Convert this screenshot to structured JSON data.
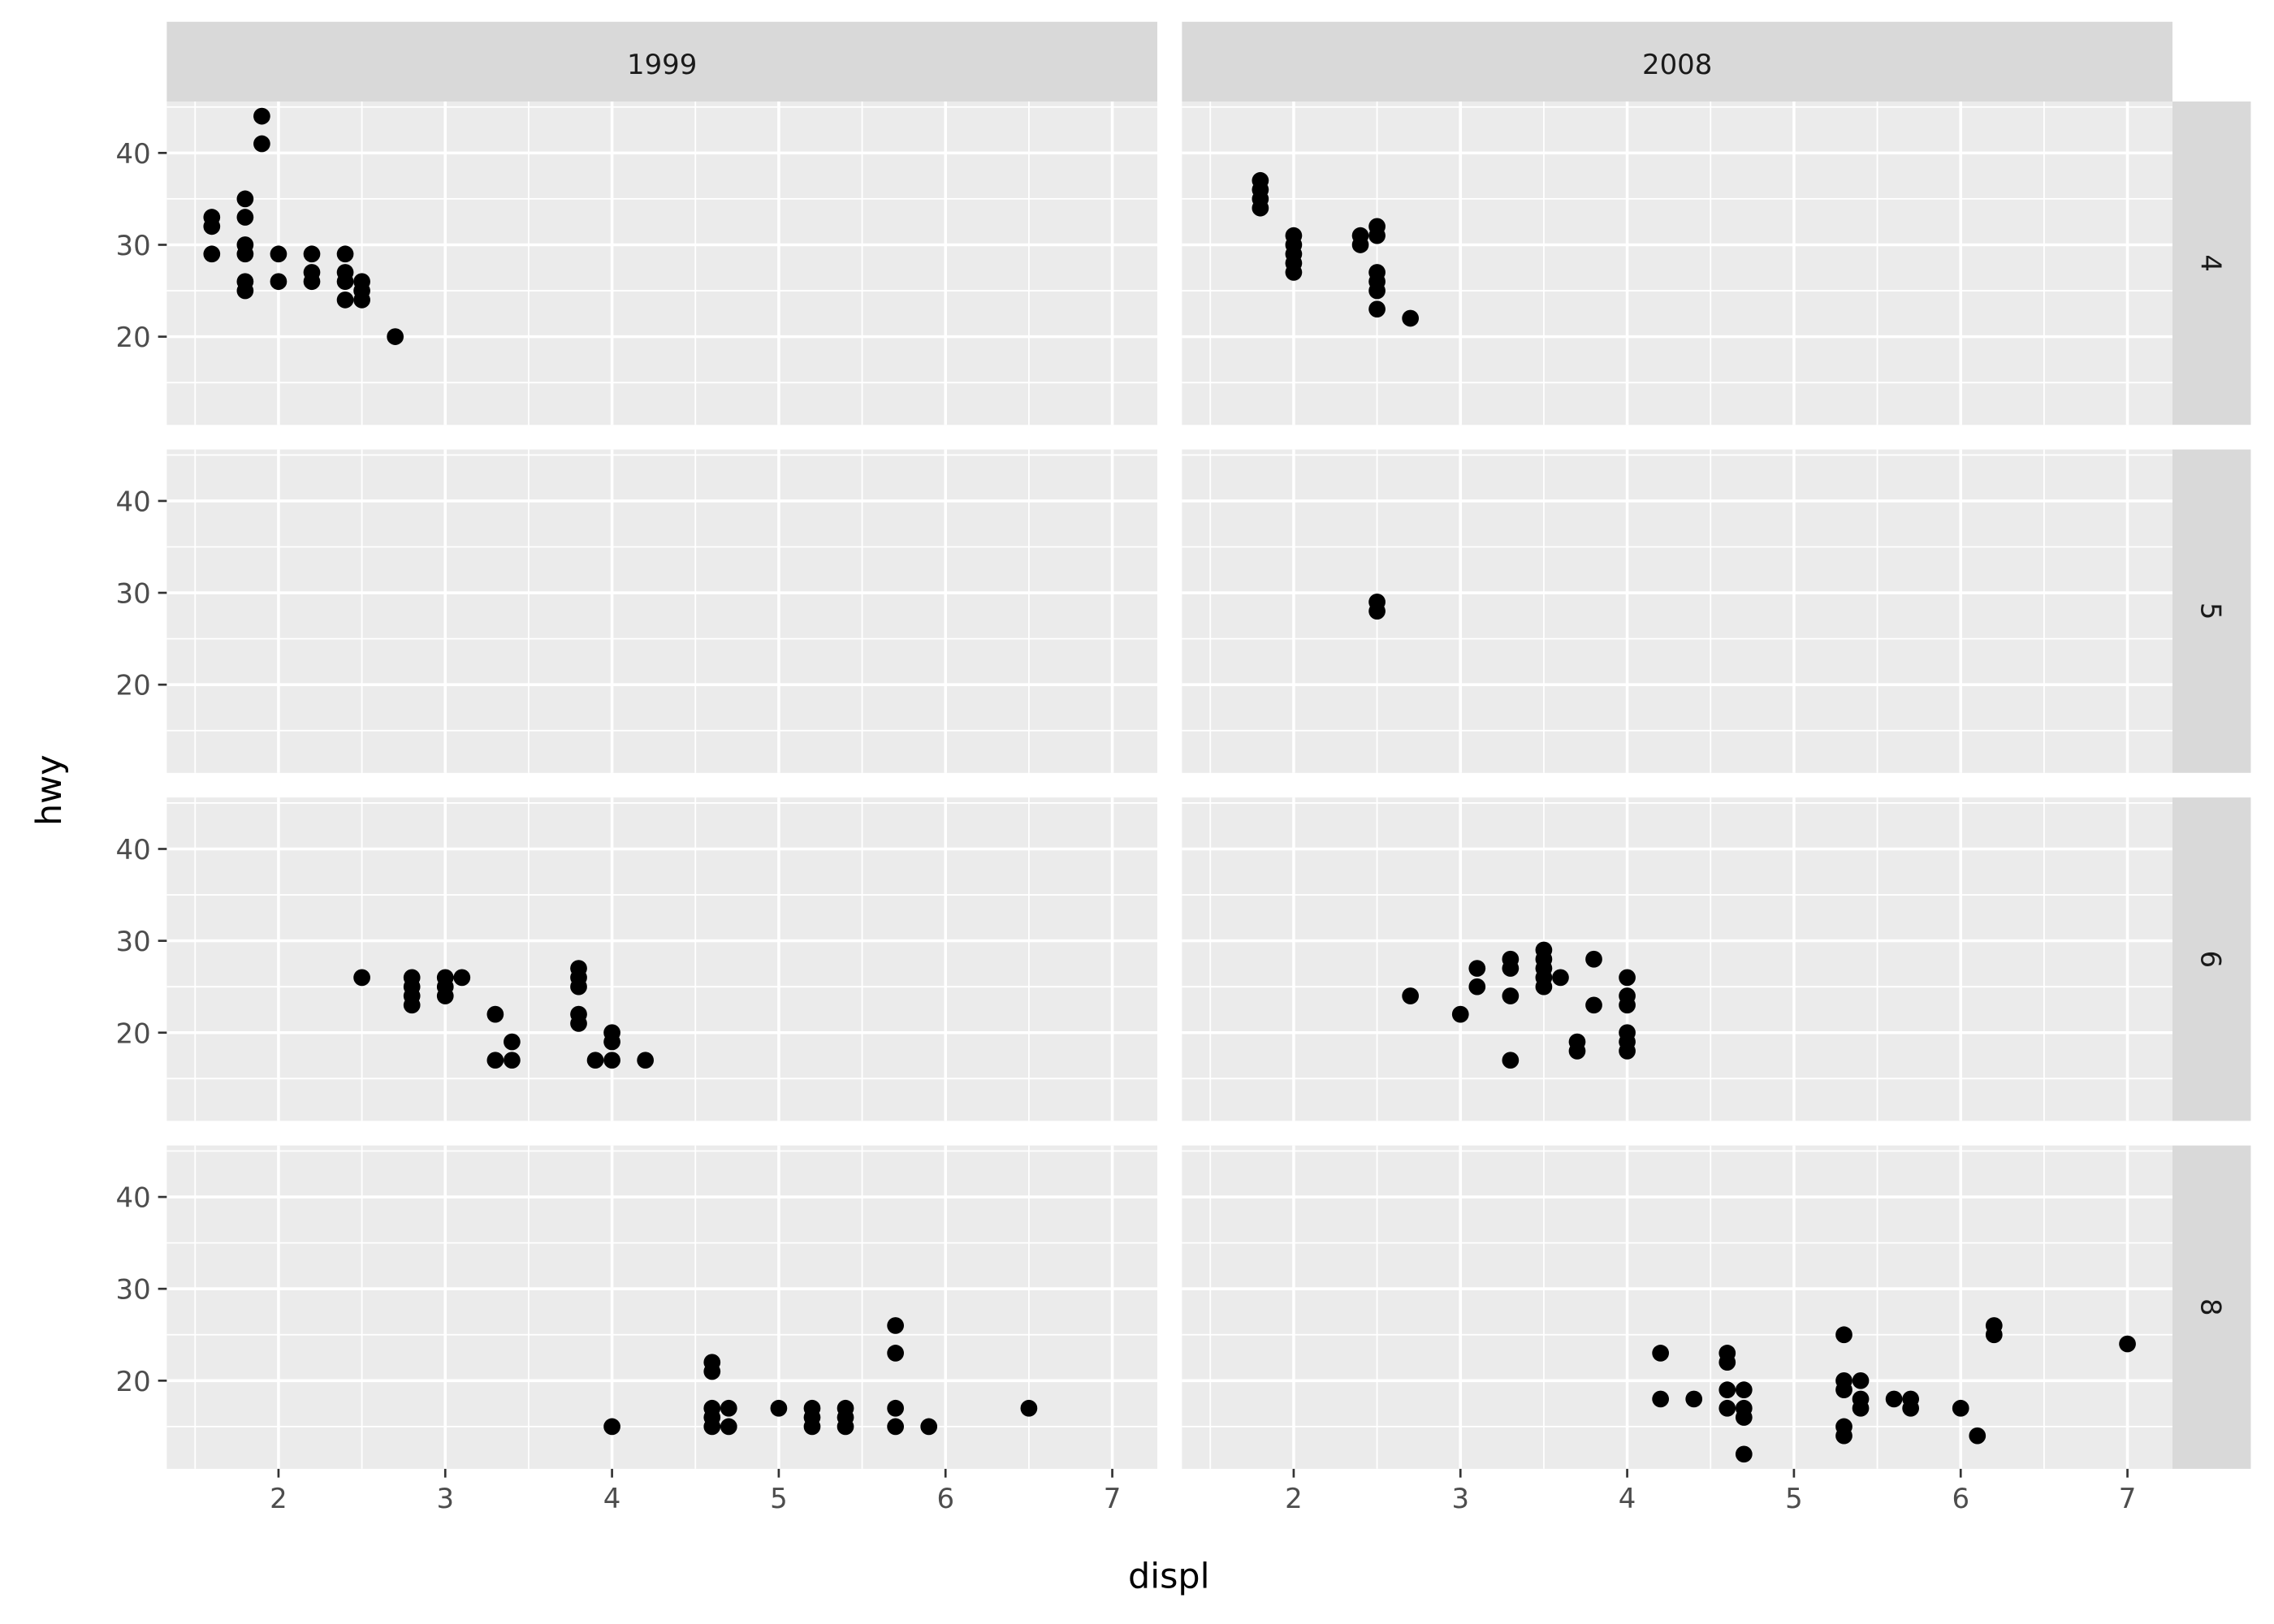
{
  "chart_data": {
    "type": "scatter",
    "xlabel": "displ",
    "ylabel": "hwy",
    "xlim": [
      1.33,
      7.27
    ],
    "ylim": [
      10.4,
      45.6
    ],
    "x_ticks": [
      2,
      3,
      4,
      5,
      6,
      7
    ],
    "y_ticks": [
      20,
      30,
      40
    ],
    "x_tick_labels": [
      "2",
      "3",
      "4",
      "5",
      "6",
      "7"
    ],
    "y_tick_labels": [
      "20",
      "30",
      "40"
    ],
    "grid": true,
    "colors": {
      "panel": "#ebebeb",
      "strip": "#d9d9d9",
      "grid": "#ffffff",
      "point": "#000000"
    },
    "facets": {
      "cols": [
        "1999",
        "2008"
      ],
      "rows": [
        "4",
        "5",
        "6",
        "8"
      ]
    },
    "panels": [
      {
        "col": "1999",
        "row": "4",
        "points": [
          [
            1.6,
            33
          ],
          [
            1.6,
            32
          ],
          [
            1.6,
            29
          ],
          [
            1.8,
            35
          ],
          [
            1.8,
            33
          ],
          [
            1.8,
            30
          ],
          [
            1.8,
            29
          ],
          [
            1.8,
            26
          ],
          [
            1.8,
            25
          ],
          [
            1.9,
            44
          ],
          [
            1.9,
            41
          ],
          [
            2.0,
            29
          ],
          [
            2.0,
            26
          ],
          [
            2.2,
            29
          ],
          [
            2.2,
            27
          ],
          [
            2.2,
            26
          ],
          [
            2.4,
            29
          ],
          [
            2.4,
            27
          ],
          [
            2.4,
            26
          ],
          [
            2.4,
            24
          ],
          [
            2.5,
            26
          ],
          [
            2.5,
            25
          ],
          [
            2.5,
            24
          ],
          [
            2.7,
            20
          ]
        ]
      },
      {
        "col": "2008",
        "row": "4",
        "points": [
          [
            1.8,
            37
          ],
          [
            1.8,
            36
          ],
          [
            1.8,
            35
          ],
          [
            1.8,
            34
          ],
          [
            2.0,
            31
          ],
          [
            2.0,
            30
          ],
          [
            2.0,
            29
          ],
          [
            2.0,
            28
          ],
          [
            2.0,
            27
          ],
          [
            2.4,
            31
          ],
          [
            2.4,
            30
          ],
          [
            2.5,
            32
          ],
          [
            2.5,
            31
          ],
          [
            2.5,
            27
          ],
          [
            2.5,
            26
          ],
          [
            2.5,
            25
          ],
          [
            2.5,
            23
          ],
          [
            2.7,
            22
          ]
        ]
      },
      {
        "col": "1999",
        "row": "5",
        "points": []
      },
      {
        "col": "2008",
        "row": "5",
        "points": [
          [
            2.5,
            29
          ],
          [
            2.5,
            28
          ]
        ]
      },
      {
        "col": "1999",
        "row": "6",
        "points": [
          [
            2.5,
            26
          ],
          [
            2.8,
            26
          ],
          [
            2.8,
            25
          ],
          [
            2.8,
            24
          ],
          [
            2.8,
            23
          ],
          [
            3.0,
            26
          ],
          [
            3.0,
            25
          ],
          [
            3.0,
            24
          ],
          [
            3.1,
            26
          ],
          [
            3.3,
            22
          ],
          [
            3.3,
            17
          ],
          [
            3.4,
            19
          ],
          [
            3.4,
            17
          ],
          [
            3.8,
            27
          ],
          [
            3.8,
            26
          ],
          [
            3.8,
            25
          ],
          [
            3.8,
            22
          ],
          [
            3.8,
            21
          ],
          [
            3.9,
            17
          ],
          [
            4.0,
            20
          ],
          [
            4.0,
            19
          ],
          [
            4.0,
            17
          ],
          [
            4.2,
            17
          ]
        ]
      },
      {
        "col": "2008",
        "row": "6",
        "points": [
          [
            2.7,
            24
          ],
          [
            3.0,
            22
          ],
          [
            3.1,
            27
          ],
          [
            3.1,
            25
          ],
          [
            3.3,
            28
          ],
          [
            3.3,
            27
          ],
          [
            3.3,
            24
          ],
          [
            3.3,
            17
          ],
          [
            3.5,
            29
          ],
          [
            3.5,
            28
          ],
          [
            3.5,
            27
          ],
          [
            3.5,
            26
          ],
          [
            3.5,
            25
          ],
          [
            3.6,
            26
          ],
          [
            3.7,
            19
          ],
          [
            3.7,
            18
          ],
          [
            3.8,
            28
          ],
          [
            3.8,
            23
          ],
          [
            4.0,
            26
          ],
          [
            4.0,
            24
          ],
          [
            4.0,
            23
          ],
          [
            4.0,
            20
          ],
          [
            4.0,
            19
          ],
          [
            4.0,
            18
          ]
        ]
      },
      {
        "col": "1999",
        "row": "8",
        "points": [
          [
            4.0,
            15
          ],
          [
            4.6,
            22
          ],
          [
            4.6,
            21
          ],
          [
            4.6,
            17
          ],
          [
            4.6,
            16
          ],
          [
            4.6,
            15
          ],
          [
            4.7,
            17
          ],
          [
            4.7,
            15
          ],
          [
            5.0,
            17
          ],
          [
            5.2,
            17
          ],
          [
            5.2,
            16
          ],
          [
            5.2,
            15
          ],
          [
            5.4,
            17
          ],
          [
            5.4,
            16
          ],
          [
            5.4,
            15
          ],
          [
            5.7,
            26
          ],
          [
            5.7,
            23
          ],
          [
            5.7,
            17
          ],
          [
            5.7,
            15
          ],
          [
            5.9,
            15
          ],
          [
            6.5,
            17
          ]
        ]
      },
      {
        "col": "2008",
        "row": "8",
        "points": [
          [
            4.2,
            23
          ],
          [
            4.2,
            18
          ],
          [
            4.4,
            18
          ],
          [
            4.6,
            23
          ],
          [
            4.6,
            22
          ],
          [
            4.6,
            19
          ],
          [
            4.6,
            17
          ],
          [
            4.7,
            19
          ],
          [
            4.7,
            17
          ],
          [
            4.7,
            16
          ],
          [
            4.7,
            12
          ],
          [
            5.3,
            25
          ],
          [
            5.3,
            20
          ],
          [
            5.3,
            19
          ],
          [
            5.3,
            15
          ],
          [
            5.3,
            14
          ],
          [
            5.4,
            20
          ],
          [
            5.4,
            18
          ],
          [
            5.4,
            17
          ],
          [
            5.6,
            18
          ],
          [
            5.7,
            18
          ],
          [
            5.7,
            17
          ],
          [
            6.0,
            17
          ],
          [
            6.1,
            14
          ],
          [
            6.2,
            26
          ],
          [
            6.2,
            25
          ],
          [
            7.0,
            24
          ]
        ]
      }
    ]
  }
}
